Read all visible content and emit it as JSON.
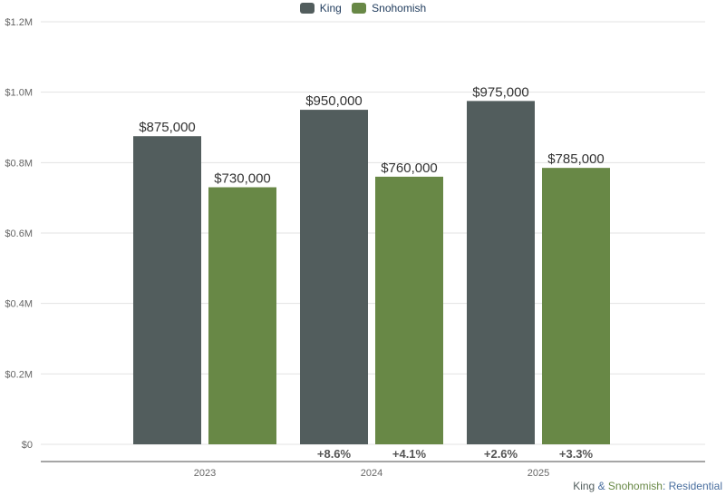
{
  "chart_data": {
    "type": "bar",
    "categories": [
      "2023",
      "2024",
      "2025"
    ],
    "series": [
      {
        "name": "King",
        "color": "#525d5d",
        "values": [
          875000,
          950000,
          975000
        ],
        "labels": [
          "$875,000",
          "$950,000",
          "$975,000"
        ]
      },
      {
        "name": "Snohomish",
        "color": "#688846",
        "values": [
          730000,
          760000,
          785000
        ],
        "labels": [
          "$730,000",
          "$760,000",
          "$785,000"
        ]
      }
    ],
    "changes": [
      {
        "category": "2024",
        "series": "King",
        "label": "+8.6%"
      },
      {
        "category": "2024",
        "series": "Snohomish",
        "label": "+4.1%"
      },
      {
        "category": "2025",
        "series": "King",
        "label": "+2.6%"
      },
      {
        "category": "2025",
        "series": "Snohomish",
        "label": "+3.3%"
      }
    ],
    "yticks": [
      0,
      200000,
      400000,
      600000,
      800000,
      1000000,
      1200000
    ],
    "ytick_labels": [
      "$0",
      "$0.2M",
      "$0.4M",
      "$0.6M",
      "$0.8M",
      "$1.0M",
      "$1.2M"
    ],
    "ylim": [
      0,
      1200000
    ],
    "grid": true,
    "legend_placement": "top-center",
    "caption": {
      "part1": "King",
      "part2": " & ",
      "part3": "Snohomish",
      "part4": ": Residential"
    }
  }
}
